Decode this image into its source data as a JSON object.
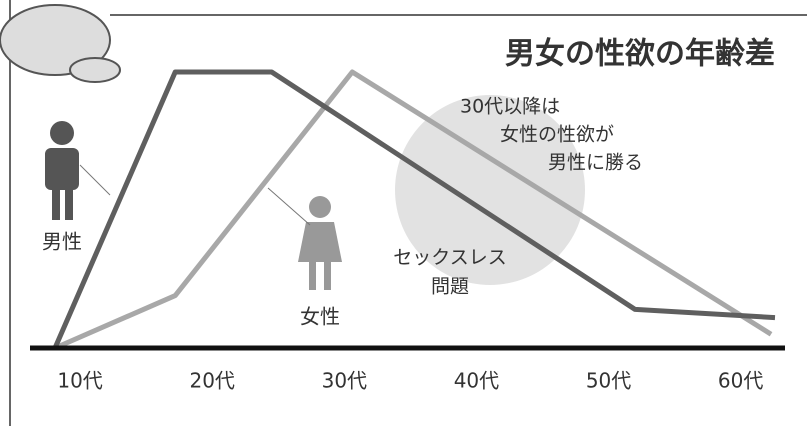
{
  "chart_data": {
    "type": "line",
    "title": "男女の性欲の年齢差",
    "xlim": [
      8.1,
      62.6
    ],
    "xticks": [
      {
        "value": 10,
        "label": "10代"
      },
      {
        "value": 20,
        "label": "20代"
      },
      {
        "value": 30,
        "label": "30代"
      },
      {
        "value": 40,
        "label": "40代"
      },
      {
        "value": 50,
        "label": "50代"
      },
      {
        "value": 60,
        "label": "60代"
      }
    ],
    "ylim": [
      0,
      100
    ],
    "series": [
      {
        "name": "男性",
        "color": "#5f5f5f",
        "x": [
          8.1,
          17.2,
          24.5,
          52.0,
          62.6
        ],
        "values": [
          0,
          100,
          100,
          14,
          11
        ]
      },
      {
        "name": "女性",
        "color": "#a8a8a8",
        "x": [
          8.1,
          17.2,
          30.6,
          62.3
        ],
        "values": [
          0,
          19,
          100,
          5
        ]
      }
    ],
    "annotations": [
      {
        "lines": [
          "30代以降は",
          "女性の性欲が",
          "男性に勝る"
        ]
      },
      {
        "lines": [
          "セックスレス",
          "問題"
        ]
      }
    ]
  }
}
